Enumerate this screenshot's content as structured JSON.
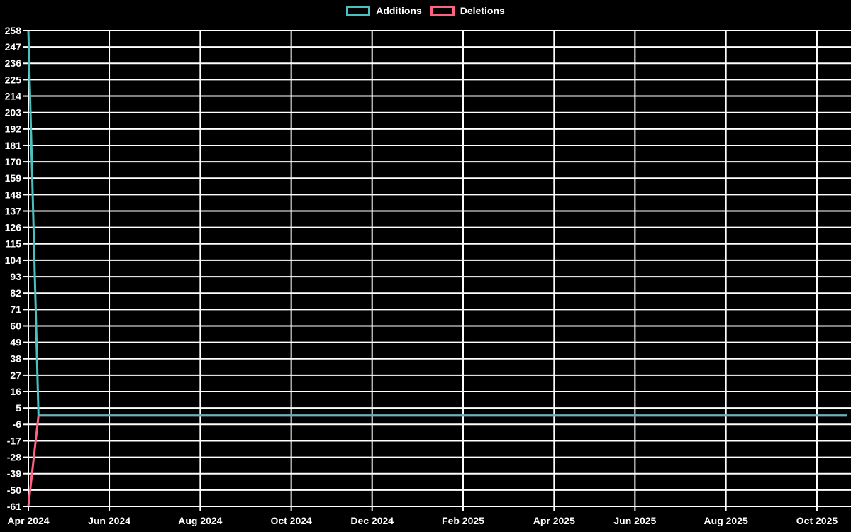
{
  "chart_data": {
    "type": "line",
    "title": "",
    "background_color": "#000000",
    "grid_color": "#ffffff",
    "text_color": "#ffffff",
    "legend_position": "top",
    "x_axis": {
      "kind": "weekly-time-axis",
      "weeks": 82,
      "ticks": [
        {
          "label": "Apr 2024",
          "week_offset": 0
        },
        {
          "label": "Jun 2024",
          "week_offset": 8
        },
        {
          "label": "Aug 2024",
          "week_offset": 17
        },
        {
          "label": "Oct 2024",
          "week_offset": 26
        },
        {
          "label": "Dec 2024",
          "week_offset": 34
        },
        {
          "label": "Feb 2025",
          "week_offset": 43
        },
        {
          "label": "Apr 2025",
          "week_offset": 52
        },
        {
          "label": "Jun 2025",
          "week_offset": 60
        },
        {
          "label": "Aug 2025",
          "week_offset": 69
        },
        {
          "label": "Oct 2025",
          "week_offset": 78
        }
      ]
    },
    "y_axis": {
      "min": -61,
      "max": 258,
      "step": 11,
      "ticks": [
        258,
        247,
        236,
        225,
        214,
        203,
        192,
        181,
        170,
        159,
        148,
        137,
        126,
        115,
        104,
        93,
        82,
        71,
        60,
        49,
        38,
        27,
        16,
        5,
        -6,
        -17,
        -28,
        -39,
        -50,
        -61
      ]
    },
    "series": [
      {
        "name": "Additions",
        "color": "#4bc0c0",
        "values": [
          258,
          0,
          0,
          0,
          0,
          0,
          0,
          0,
          0,
          0,
          0,
          0,
          0,
          0,
          0,
          0,
          0,
          0,
          0,
          0,
          0,
          0,
          0,
          0,
          0,
          0,
          0,
          0,
          0,
          0,
          0,
          0,
          0,
          0,
          0,
          0,
          0,
          0,
          0,
          0,
          0,
          0,
          0,
          0,
          0,
          0,
          0,
          0,
          0,
          0,
          0,
          0,
          0,
          0,
          0,
          0,
          0,
          0,
          0,
          0,
          0,
          0,
          0,
          0,
          0,
          0,
          0,
          0,
          0,
          0,
          0,
          0,
          0,
          0,
          0,
          0,
          0,
          0,
          0,
          0,
          0,
          0
        ]
      },
      {
        "name": "Deletions",
        "color": "#ff6384",
        "values": [
          -61,
          0,
          0,
          0,
          0,
          0,
          0,
          0,
          0,
          0,
          0,
          0,
          0,
          0,
          0,
          0,
          0,
          0,
          0,
          0,
          0,
          0,
          0,
          0,
          0,
          0,
          0,
          0,
          0,
          0,
          0,
          0,
          0,
          0,
          0,
          0,
          0,
          0,
          0,
          0,
          0,
          0,
          0,
          0,
          0,
          0,
          0,
          0,
          0,
          0,
          0,
          0,
          0,
          0,
          0,
          0,
          0,
          0,
          0,
          0,
          0,
          0,
          0,
          0,
          0,
          0,
          0,
          0,
          0,
          0,
          0,
          0,
          0,
          0,
          0,
          0,
          0,
          0,
          0,
          0,
          0,
          0
        ]
      }
    ]
  }
}
